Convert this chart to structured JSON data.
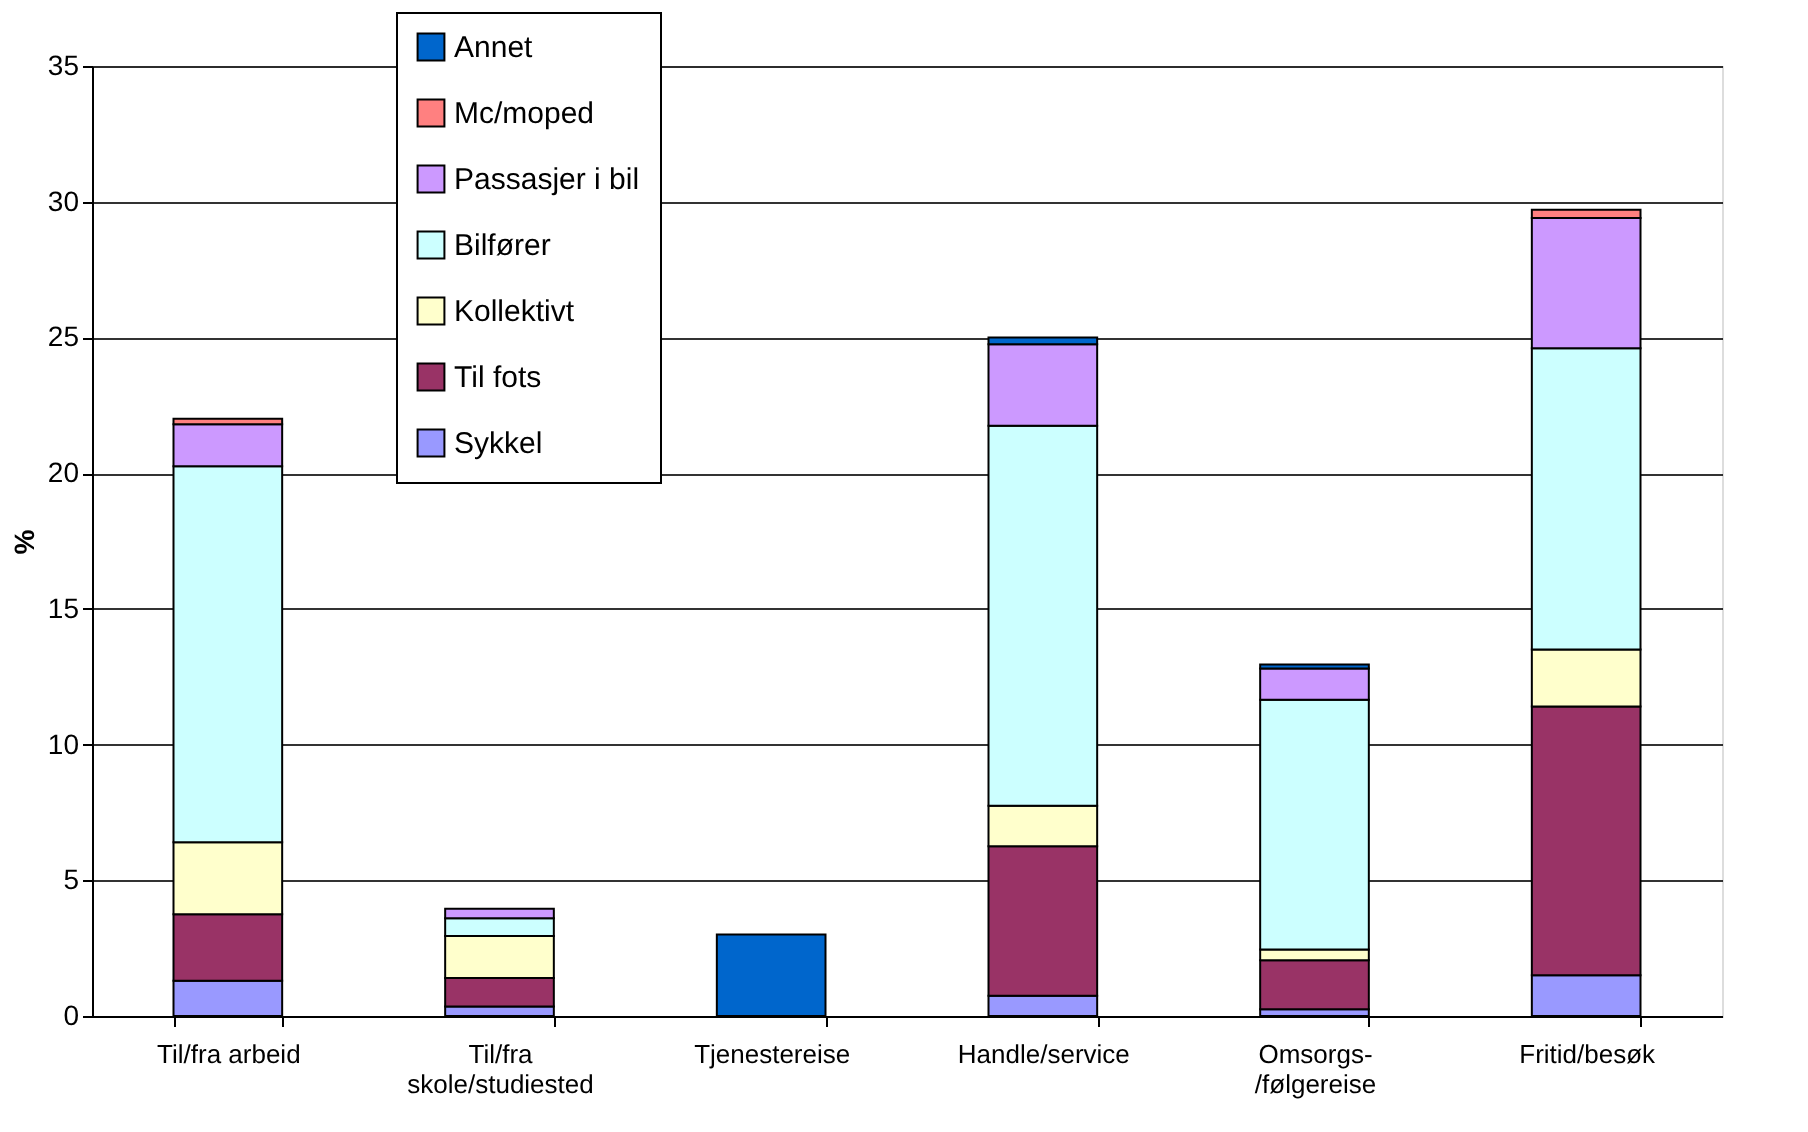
{
  "chart_data": {
    "type": "bar",
    "stacked": true,
    "ylabel": "%",
    "categories": [
      "Til/fra arbeid",
      "Til/fra\nskole/studiested",
      "Tjenestereise",
      "Handle/service",
      "Omsorgs-\n/følgereise",
      "Fritid/besøk"
    ],
    "series": [
      {
        "name": "Sykkel",
        "color": "#9999ff",
        "values": [
          1.3,
          0.35,
          null,
          0.75,
          0.25,
          1.5
        ]
      },
      {
        "name": "Til fots",
        "color": "#993366",
        "values": [
          2.45,
          1.05,
          null,
          5.5,
          1.8,
          9.9
        ]
      },
      {
        "name": "Kollektivt",
        "color": "#ffffcc",
        "values": [
          2.65,
          1.55,
          null,
          1.5,
          0.4,
          2.1
        ]
      },
      {
        "name": "Bilfører",
        "color": "#ccffff",
        "values": [
          13.85,
          0.65,
          null,
          14.0,
          9.2,
          11.1
        ]
      },
      {
        "name": "Passasjer i bil",
        "color": "#cc99ff",
        "values": [
          1.55,
          0.35,
          null,
          3.0,
          1.15,
          4.8
        ]
      },
      {
        "name": "Mc/moped",
        "color": "#ff8080",
        "values": [
          0.2,
          null,
          null,
          null,
          null,
          0.3
        ]
      },
      {
        "name": "Annet",
        "color": "#0066cc",
        "values": [
          null,
          null,
          3.0,
          0.25,
          0.15,
          null
        ]
      }
    ],
    "ylim": [
      0,
      35
    ],
    "yticks": [
      0,
      5,
      10,
      15,
      20,
      25,
      30,
      35
    ],
    "grid": "y",
    "legend": "top"
  }
}
